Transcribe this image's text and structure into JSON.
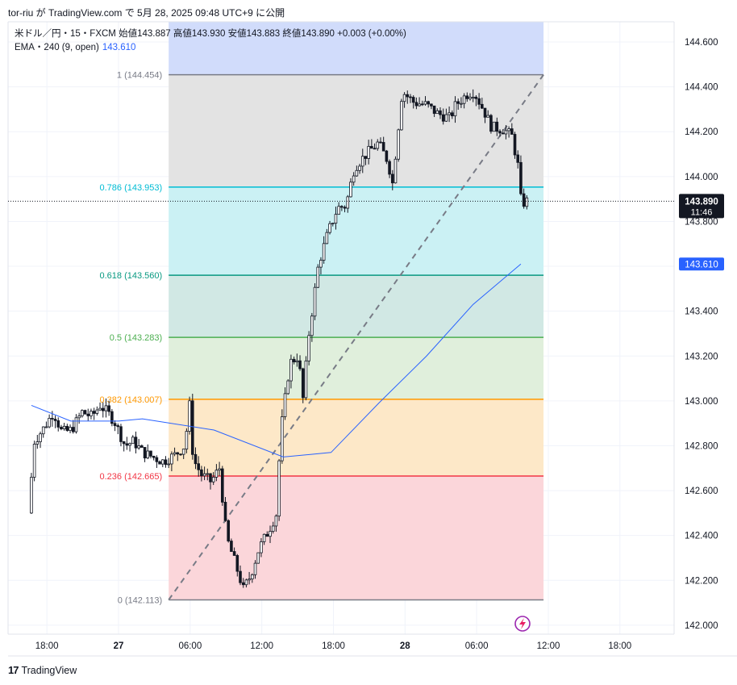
{
  "caption": "tor-riu が TradingView.com で 5月 28, 2025 09:48 UTC+9 に公開",
  "legend": {
    "symbol_line": "米ドル／円・15・FXCM  始値143.887  高値143.930  安値143.883  終値143.890  +0.003 (+0.00%)",
    "ema_label": "EMA・240 (9, open)",
    "ema_value": "143.610"
  },
  "brand": {
    "icon": "tradingview-logo-icon",
    "logo_glyph": "17",
    "text": "TradingView"
  },
  "chart_data": {
    "type": "candlestick",
    "symbol": "米ドル／円",
    "interval": "15",
    "source": "FXCM",
    "ylim": [
      141.96,
      144.69
    ],
    "y_ticks": [
      142.0,
      142.2,
      142.4,
      142.6,
      142.8,
      143.0,
      143.2,
      143.4,
      143.6,
      143.8,
      144.0,
      144.2,
      144.4,
      144.6
    ],
    "y_tick_labels": [
      "142.000",
      "142.200",
      "142.400",
      "142.600",
      "142.800",
      "143.000",
      "143.200",
      "143.400",
      "143.600",
      "143.800",
      "144.000",
      "144.200",
      "144.400",
      "144.600"
    ],
    "x_range_hours": [
      -7.3,
      12.6
    ],
    "x_ticks": [
      {
        "hour": -6,
        "label": "18:00",
        "bold": false
      },
      {
        "hour": 0,
        "label": "27",
        "bold": true
      },
      {
        "hour": 6,
        "label": "06:00",
        "bold": false
      },
      {
        "hour": 12,
        "label": "12:00",
        "bold": false
      },
      {
        "hour": 18,
        "label": "18:00",
        "bold": false
      },
      {
        "hour": 24,
        "label": "28",
        "bold": true
      },
      {
        "hour": 30,
        "label": "06:00",
        "bold": false
      },
      {
        "hour": 36,
        "label": "12:00",
        "bold": false
      },
      {
        "hour": 42,
        "label": "18:00",
        "bold": false
      }
    ],
    "last_price": {
      "value": 143.89,
      "label": "143.890",
      "countdown": "11:46"
    },
    "ema_marker": {
      "value": 143.61,
      "label": "143.610"
    },
    "fibonacci": {
      "x_start_hour": 4.2,
      "x_end_hour": 35.6,
      "levels": [
        {
          "ratio": "1",
          "price": 144.454,
          "label": "1 (144.454)",
          "line": "#787b86",
          "fill": "#d5d8df"
        },
        {
          "ratio": "0.786",
          "price": 143.953,
          "label": "0.786 (143.953)",
          "line": "#00bcd4",
          "fill": "#e3e3e3"
        },
        {
          "ratio": "0.618",
          "price": 143.56,
          "label": "0.618 (143.560)",
          "line": "#089981",
          "fill": "#cbf1f4"
        },
        {
          "ratio": "0.5",
          "price": 143.283,
          "label": "0.5 (143.283)",
          "line": "#4caf50",
          "fill": "#d1e8e4"
        },
        {
          "ratio": "0.382",
          "price": 143.007,
          "label": "0.382 (143.007)",
          "line": "#ff9800",
          "fill": "#e0efdc"
        },
        {
          "ratio": "0.236",
          "price": 142.665,
          "label": "0.236 (142.665)",
          "line": "#f23645",
          "fill": "#fde8c8"
        },
        {
          "ratio": "0",
          "price": 142.113,
          "label": "0 (142.113)",
          "line": "#787b86",
          "fill": "#fbd6da"
        }
      ],
      "top_fill": "#d1dcfb",
      "trend_line": {
        "from": [
          4.2,
          142.113
        ],
        "to": [
          35.6,
          144.454
        ],
        "color": "#787b86"
      }
    },
    "ema_series": {
      "color": "#2962ff",
      "points": [
        [
          -7.3,
          142.98
        ],
        [
          -4.0,
          142.91
        ],
        [
          0.0,
          142.91
        ],
        [
          2.0,
          142.92
        ],
        [
          8.0,
          142.87
        ],
        [
          13.8,
          142.75
        ],
        [
          17.8,
          142.77
        ],
        [
          21.8,
          142.99
        ],
        [
          25.8,
          143.2
        ],
        [
          29.7,
          143.43
        ],
        [
          33.7,
          143.61
        ]
      ]
    },
    "candle_anchors": [
      [
        -7.3,
        142.5
      ],
      [
        -6.8,
        142.82
      ],
      [
        -6.0,
        142.88
      ],
      [
        -5.2,
        142.95
      ],
      [
        -4.5,
        142.86
      ],
      [
        -3.7,
        142.87
      ],
      [
        -2.8,
        142.95
      ],
      [
        -2.0,
        142.93
      ],
      [
        -1.3,
        142.98
      ],
      [
        -0.7,
        142.95
      ],
      [
        -0.1,
        142.91
      ],
      [
        0.8,
        142.8
      ],
      [
        1.5,
        142.82
      ],
      [
        2.3,
        142.77
      ],
      [
        3.1,
        142.75
      ],
      [
        4.0,
        142.73
      ],
      [
        5.0,
        142.76
      ],
      [
        5.8,
        142.8
      ],
      [
        6.2,
        142.98
      ],
      [
        6.5,
        142.74
      ],
      [
        7.2,
        142.67
      ],
      [
        8.0,
        142.64
      ],
      [
        8.7,
        142.7
      ],
      [
        9.3,
        142.39
      ],
      [
        10.0,
        142.28
      ],
      [
        10.7,
        142.16
      ],
      [
        11.3,
        142.22
      ],
      [
        12.0,
        142.34
      ],
      [
        12.8,
        142.42
      ],
      [
        13.5,
        142.5
      ],
      [
        13.8,
        142.85
      ],
      [
        14.6,
        143.17
      ],
      [
        15.3,
        143.2
      ],
      [
        15.7,
        143.01
      ],
      [
        16.2,
        143.3
      ],
      [
        17.0,
        143.61
      ],
      [
        17.8,
        143.75
      ],
      [
        18.6,
        143.86
      ],
      [
        19.3,
        143.87
      ],
      [
        20.0,
        144.04
      ],
      [
        21.0,
        144.1
      ],
      [
        22.0,
        144.15
      ],
      [
        22.8,
        144.07
      ],
      [
        23.2,
        143.97
      ],
      [
        24.0,
        144.38
      ],
      [
        25.0,
        144.33
      ],
      [
        26.0,
        144.32
      ],
      [
        27.0,
        144.28
      ],
      [
        28.0,
        144.26
      ],
      [
        28.5,
        144.32
      ],
      [
        29.5,
        144.37
      ],
      [
        30.0,
        144.38
      ],
      [
        30.8,
        144.3
      ],
      [
        31.5,
        144.22
      ],
      [
        32.5,
        144.21
      ],
      [
        33.2,
        144.18
      ],
      [
        33.7,
        144.05
      ],
      [
        34.0,
        143.87
      ],
      [
        34.3,
        143.89
      ]
    ]
  }
}
